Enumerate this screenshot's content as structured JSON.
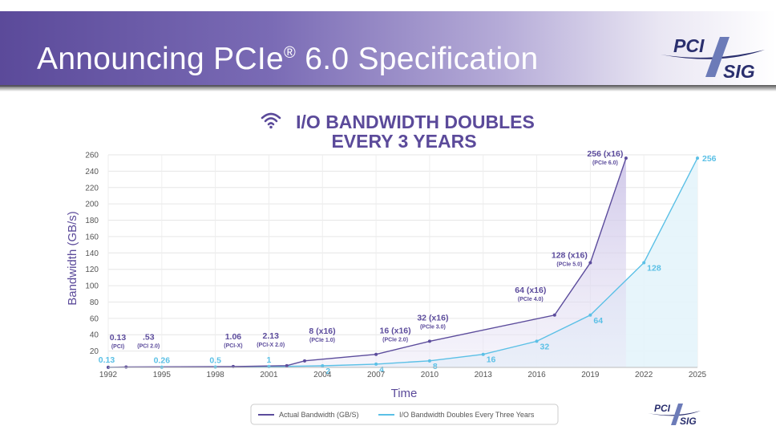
{
  "slide": {
    "title_main": "Announcing PCIe",
    "title_reg": "®",
    "title_rest": " 6.0 Specification"
  },
  "logo": {
    "top": "PCI",
    "bottom": "SIG"
  },
  "colors": {
    "actual": "#5c4c9c",
    "doubling": "#5bc0e6",
    "title": "#5b4a9a"
  },
  "chart_data": {
    "type": "line",
    "title_line1": "I/O BANDWIDTH DOUBLES",
    "title_line2": "EVERY 3 YEARS",
    "title_icon": "wifi-icon",
    "xlabel": "Time",
    "ylabel": "Bandwidth (GB/s)",
    "xlim": [
      1992,
      2025
    ],
    "ylim": [
      0,
      260
    ],
    "xticks": [
      1992,
      1995,
      1998,
      2001,
      2004,
      2007,
      2010,
      2013,
      2016,
      2019,
      2022,
      2025
    ],
    "yticks": [
      20,
      40,
      60,
      80,
      100,
      120,
      140,
      160,
      180,
      200,
      220,
      240,
      260
    ],
    "grid": true,
    "legend_position": "bottom",
    "series": [
      {
        "name": "Actual Bandwidth (GB/S)",
        "color": "#5c4c9c",
        "points": [
          {
            "x": 1992,
            "y": 0.13,
            "label": "0.13",
            "sub": "(PCI)"
          },
          {
            "x": 1993,
            "y": 0.53,
            "label": ".53",
            "sub": "(PCI 2.0)"
          },
          {
            "x": 1999,
            "y": 1.06,
            "label": "1.06",
            "sub": "(PCI-X)"
          },
          {
            "x": 2002,
            "y": 2.13,
            "label": "2.13",
            "sub": "(PCI-X 2.0)"
          },
          {
            "x": 2003,
            "y": 8,
            "label": "8 (x16)",
            "sub": "(PCIe 1.0)"
          },
          {
            "x": 2007,
            "y": 16,
            "label": "16 (x16)",
            "sub": "(PCIe 2.0)"
          },
          {
            "x": 2010,
            "y": 32,
            "label": "32 (x16)",
            "sub": "(PCIe 3.0)"
          },
          {
            "x": 2017,
            "y": 64,
            "label": "64 (x16)",
            "sub": "(PCIe 4.0)"
          },
          {
            "x": 2019,
            "y": 128,
            "label": "128 (x16)",
            "sub": "(PCIe 5.0)"
          },
          {
            "x": 2021,
            "y": 256,
            "label": "256 (x16)",
            "sub": "(PCIe 6.0)"
          }
        ]
      },
      {
        "name": "I/O Bandwidth Doubles Every Three Years",
        "color": "#5bc0e6",
        "points": [
          {
            "x": 1992,
            "y": 0.13,
            "label": "0.13"
          },
          {
            "x": 1995,
            "y": 0.26,
            "label": "0.26"
          },
          {
            "x": 1998,
            "y": 0.5,
            "label": "0.5"
          },
          {
            "x": 2001,
            "y": 1,
            "label": "1"
          },
          {
            "x": 2004,
            "y": 2,
            "label": "2"
          },
          {
            "x": 2007,
            "y": 4,
            "label": "4"
          },
          {
            "x": 2010,
            "y": 8,
            "label": "8"
          },
          {
            "x": 2013,
            "y": 16,
            "label": "16"
          },
          {
            "x": 2016,
            "y": 32,
            "label": "32"
          },
          {
            "x": 2019,
            "y": 64,
            "label": "64"
          },
          {
            "x": 2022,
            "y": 128,
            "label": "128"
          },
          {
            "x": 2025,
            "y": 256,
            "label": "256"
          }
        ]
      }
    ]
  }
}
